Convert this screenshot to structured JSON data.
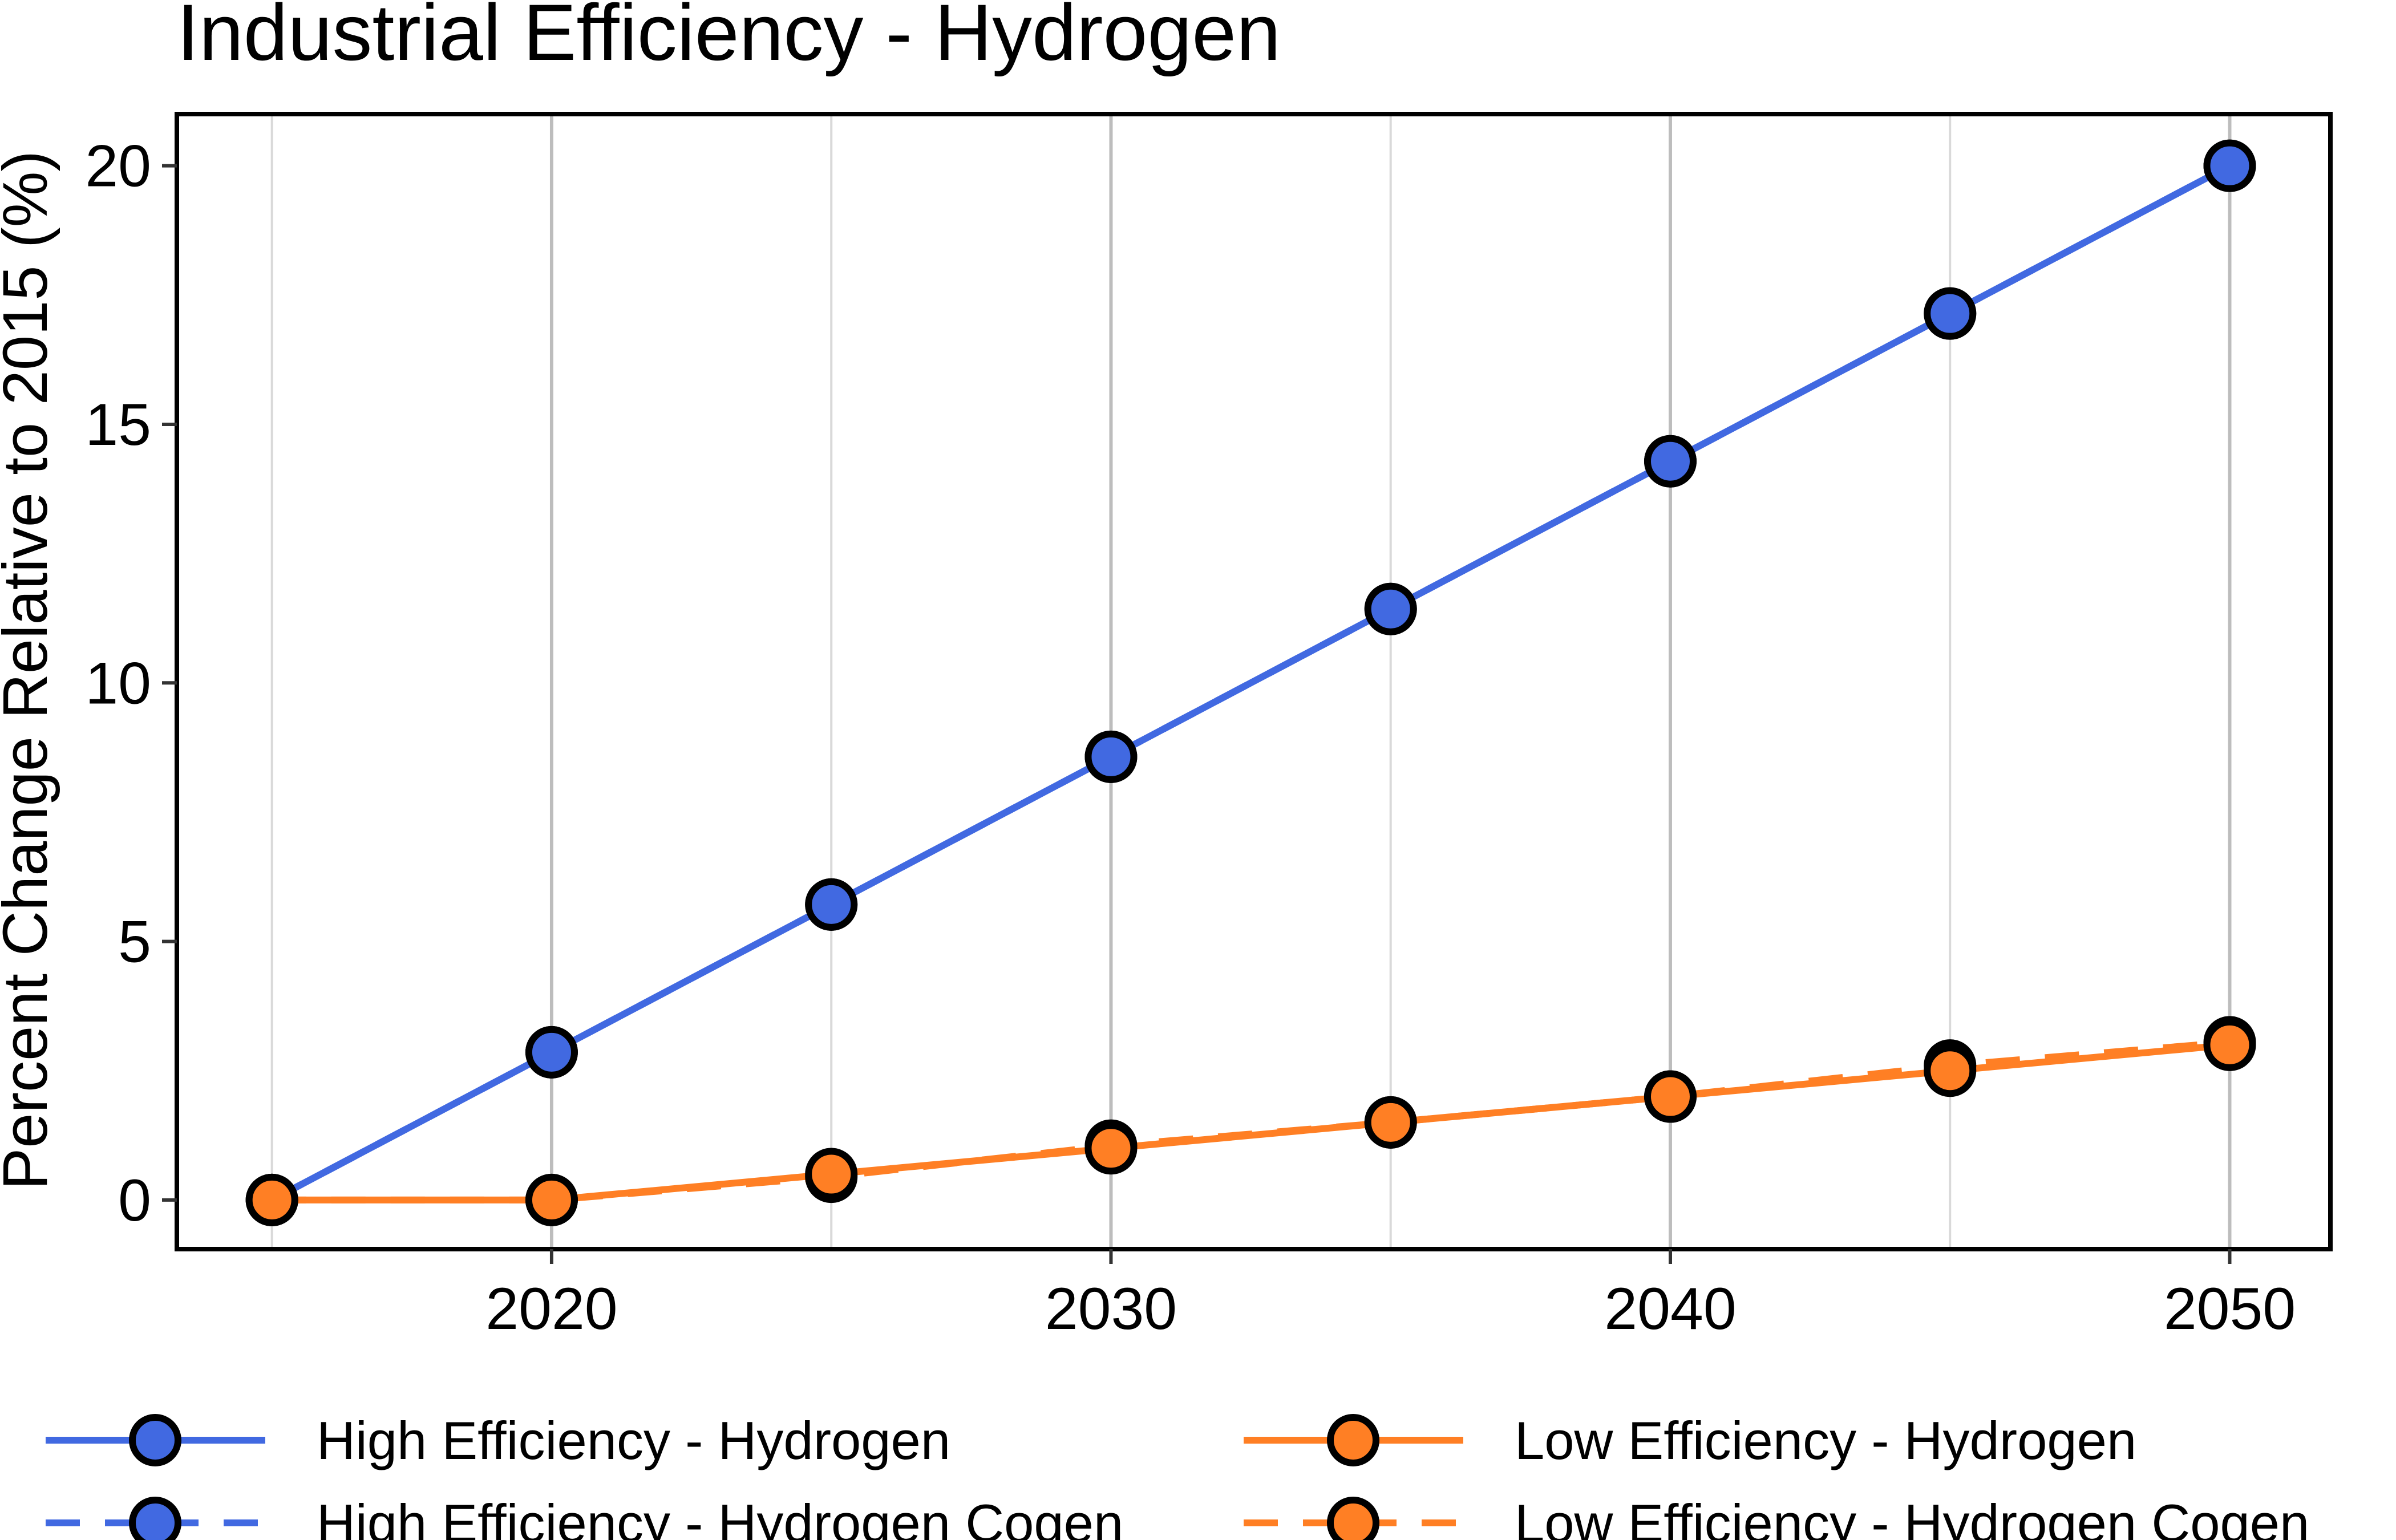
{
  "chart_data": {
    "type": "line",
    "title": "Industrial Efficiency - Hydrogen",
    "xlabel": "",
    "ylabel": "Percent Change Relative to 2015 (%)",
    "x": [
      2015,
      2020,
      2025,
      2030,
      2035,
      2040,
      2045,
      2050
    ],
    "xticks": [
      2020,
      2030,
      2040,
      2050
    ],
    "yticks": [
      0,
      5,
      10,
      15,
      20
    ],
    "xlim": [
      2013.3,
      2051.8
    ],
    "ylim": [
      -0.95,
      21.0
    ],
    "grid": "vertical",
    "legend_position": "bottom",
    "series": [
      {
        "name": "High Efficiency - Hydrogen",
        "color": "#4169E1",
        "dash": "solid",
        "values": [
          0,
          2.857,
          5.714,
          8.571,
          11.429,
          14.286,
          17.143,
          20.0
        ]
      },
      {
        "name": "High Efficiency - Hydrogen Cogen",
        "color": "#4169E1",
        "dash": "dashed",
        "values": [
          0,
          2.857,
          5.714,
          8.571,
          11.429,
          14.286,
          17.143,
          20.0
        ]
      },
      {
        "name": "Low Efficiency - Hydrogen",
        "color": "#FF7F24",
        "dash": "solid",
        "values": [
          0,
          0,
          0.5,
          1.0,
          1.5,
          2.0,
          2.5,
          3.0
        ]
      },
      {
        "name": "Low Efficiency - Hydrogen Cogen",
        "color": "#FF7F24",
        "dash": "dashed",
        "values": [
          0,
          0,
          0.45,
          1.05,
          1.5,
          2.0,
          2.6,
          3.05
        ]
      }
    ]
  }
}
